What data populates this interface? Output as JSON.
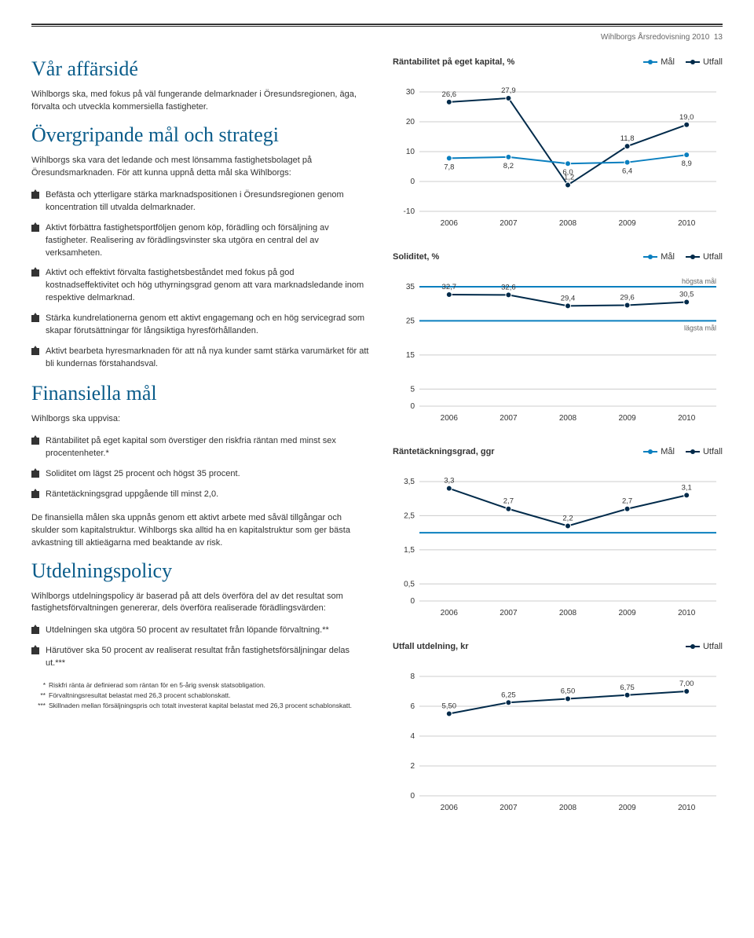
{
  "header": {
    "text": "Wihlborgs Årsredovisning 2010",
    "page": "13"
  },
  "left": {
    "section1_title": "Vår affärsidé",
    "section1_body": "Wihlborgs ska, med fokus på väl fungerande delmarknader i Öresundsregionen, äga, förvalta och utveckla kommersiella fastigheter.",
    "section2_title": "Övergripande mål och strategi",
    "section2_body": "Wihlborgs ska vara det ledande och mest lönsamma fastighetsbolaget på Öresundsmarknaden. För att kunna uppnå detta mål ska Wihlborgs:",
    "section2_bullets": [
      "Befästa och ytterligare stärka marknadspositionen i Öresundsregionen genom koncentration till utvalda delmarknader.",
      "Aktivt förbättra fastighetsportföljen genom köp, förädling och försäljning av fastigheter. Realisering av förädlingsvinster ska utgöra en central del av verksamheten.",
      "Aktivt och effektivt förvalta fastighetsbeståndet med fokus på god kostnadseffektivitet och hög uthyrningsgrad genom att vara marknadsledande inom respektive delmarknad.",
      "Stärka kundrelationerna genom ett aktivt engagemang och en hög servicegrad som skapar förutsättningar för långsiktiga hyresförhållanden.",
      "Aktivt bearbeta hyresmarknaden för att nå nya kunder samt stärka varumärket för att bli kundernas förstahandsval."
    ],
    "section3_title": "Finansiella mål",
    "section3_intro": "Wihlborgs ska uppvisa:",
    "section3_bullets": [
      "Räntabilitet på eget kapital som överstiger den riskfria räntan med minst sex procentenheter.*",
      "Soliditet om lägst 25 procent och högst 35 procent.",
      "Räntetäckningsgrad uppgående till minst 2,0."
    ],
    "section3_body": "De finansiella målen ska uppnås genom ett aktivt arbete med såväl tillgångar och skulder som kapitalstruktur. Wihlborgs ska alltid ha en kapitalstruktur som ger bästa avkastning till aktieägarna med beaktande av risk.",
    "section4_title": "Utdelningspolicy",
    "section4_body": "Wihlborgs utdelningspolicy är baserad på att dels överföra del av det resultat som fastighetsförvaltningen genererar, dels överföra realiserade förädlingsvärden:",
    "section4_bullets": [
      "Utdelningen ska utgöra 50 procent av resultatet från löpande förvaltning.**",
      "Härutöver ska 50 procent av realiserat resultat från fastighetsförsäljningar delas ut.***"
    ],
    "footnotes": [
      {
        "mark": "*",
        "text": "Riskfri ränta är definierad som räntan för en 5-årig svensk statsobligation."
      },
      {
        "mark": "**",
        "text": "Förvaltningsresultat belastat med 26,3 procent schablonskatt."
      },
      {
        "mark": "***",
        "text": "Skillnaden mellan försäljningspris och totalt investerat kapital belastat med 26,3 procent schablonskatt."
      }
    ]
  },
  "legend_labels": {
    "mal": "Mål",
    "utfall": "Utfall"
  },
  "colors": {
    "mal": "#0a7fbf",
    "utfall": "#002a4a",
    "grid": "#cccccc",
    "axis": "#333333"
  },
  "charts": {
    "chart1": {
      "title": "Räntabilitet på eget kapital, %",
      "x_labels": [
        "2006",
        "2007",
        "2008",
        "2009",
        "2010"
      ],
      "y_ticks": [
        -10,
        0,
        10,
        20,
        30
      ],
      "mal": {
        "values": [
          7.8,
          8.2,
          6.0,
          6.4,
          8.9
        ],
        "labels": [
          "7,8",
          "8,2",
          "6,0",
          "6,4",
          "8,9"
        ]
      },
      "utfall": {
        "values": [
          26.6,
          27.9,
          -1.2,
          11.8,
          19.0
        ],
        "labels": [
          "26,6",
          "27,9",
          "-1,2",
          "11,8",
          "19,0"
        ]
      }
    },
    "chart2": {
      "title": "Soliditet, %",
      "x_labels": [
        "2006",
        "2007",
        "2008",
        "2009",
        "2010"
      ],
      "y_ticks": [
        0,
        5,
        15,
        25,
        35
      ],
      "upper_mal": 35,
      "lower_mal": 25,
      "upper_label": "högsta mål",
      "lower_label": "lägsta mål",
      "utfall": {
        "values": [
          32.7,
          32.6,
          29.4,
          29.6,
          30.5
        ],
        "labels": [
          "32,7",
          "32,6",
          "29,4",
          "29,6",
          "30,5"
        ]
      }
    },
    "chart3": {
      "title": "Räntetäckningsgrad, ggr",
      "x_labels": [
        "2006",
        "2007",
        "2008",
        "2009",
        "2010"
      ],
      "y_ticks": [
        0,
        0.5,
        1.5,
        2.5,
        3.5
      ],
      "mal_const": 2.0,
      "utfall": {
        "values": [
          3.3,
          2.7,
          2.2,
          2.7,
          3.1
        ],
        "labels": [
          "3,3",
          "2,7",
          "2,2",
          "2,7",
          "3,1"
        ]
      }
    },
    "chart4": {
      "title": "Utfall utdelning, kr",
      "x_labels": [
        "2006",
        "2007",
        "2008",
        "2009",
        "2010"
      ],
      "y_ticks": [
        0,
        2,
        4,
        6,
        8
      ],
      "utfall": {
        "values": [
          5.5,
          6.25,
          6.5,
          6.75,
          7.0
        ],
        "labels": [
          "5,50",
          "6,25",
          "6,50",
          "6,75",
          "7,00"
        ]
      }
    }
  }
}
